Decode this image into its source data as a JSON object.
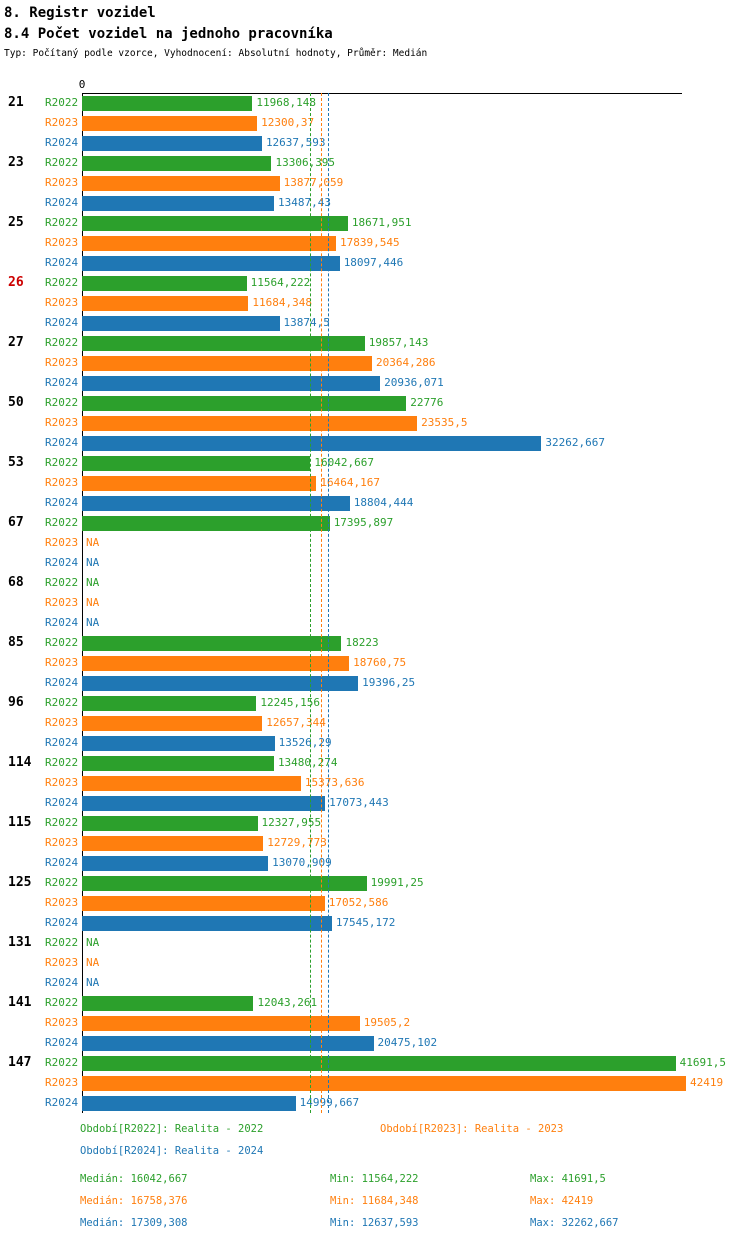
{
  "header": {
    "title": "8. Registr vozidel",
    "subtitle": "8.4 Počet vozidel na jednoho pracovníka",
    "meta": "Typ: Počítaný podle vzorce, Vyhodnocení: Absolutní hodnoty, Průměr: Medián"
  },
  "axis": {
    "zero_label": "0"
  },
  "colors": {
    "r2022": "#2ca02c",
    "r2023": "#ff7f0e",
    "r2024": "#1f77b4",
    "highlight": "#cc0000",
    "axis": "#000000"
  },
  "chart_data": {
    "type": "bar",
    "orientation": "horizontal",
    "title": "8.4 Počet vozidel na jednoho pracovníka",
    "xlabel": "",
    "ylabel": "",
    "xmin": 0,
    "xmax": 42419,
    "na_text": "NA",
    "categories": [
      "21",
      "23",
      "25",
      "26",
      "27",
      "50",
      "53",
      "67",
      "68",
      "85",
      "96",
      "114",
      "115",
      "125",
      "131",
      "141",
      "147"
    ],
    "highlighted_category": "26",
    "series": [
      {
        "name": "R2022",
        "color": "#2ca02c",
        "median": 16042.667,
        "values": [
          11968.148,
          13306.395,
          18671.951,
          11564.222,
          19857.143,
          22776,
          16042.667,
          17395.897,
          null,
          18223,
          12245.156,
          13480.274,
          12327.955,
          19991.25,
          null,
          12043.261,
          41691.5
        ],
        "labels": [
          "11968,148",
          "13306,395",
          "18671,951",
          "11564,222",
          "19857,143",
          "22776",
          "16042,667",
          "17395,897",
          "NA",
          "18223",
          "12245,156",
          "13480,274",
          "12327,955",
          "19991,25",
          "NA",
          "12043,261",
          "41691,5"
        ]
      },
      {
        "name": "R2023",
        "color": "#ff7f0e",
        "median": 16758.376,
        "values": [
          12300.37,
          13877.059,
          17839.545,
          11684.348,
          20364.286,
          23535.5,
          16464.167,
          null,
          null,
          18760.75,
          12657.344,
          15373.636,
          12729.773,
          17052.586,
          null,
          19505.2,
          42419
        ],
        "labels": [
          "12300,37",
          "13877,059",
          "17839,545",
          "11684,348",
          "20364,286",
          "23535,5",
          "16464,167",
          "NA",
          "NA",
          "18760,75",
          "12657,344",
          "15373,636",
          "12729,773",
          "17052,586",
          "NA",
          "19505,2",
          "42419"
        ]
      },
      {
        "name": "R2024",
        "color": "#1f77b4",
        "median": 17309.308,
        "values": [
          12637.593,
          13487.43,
          18097.446,
          13874.5,
          20936.071,
          32262.667,
          18804.444,
          null,
          null,
          19396.25,
          13526.29,
          17073.443,
          13070.909,
          17545.172,
          null,
          20475.102,
          14999.667
        ],
        "labels": [
          "12637,593",
          "13487,43",
          "18097,446",
          "13874,5",
          "20936,071",
          "32262,667",
          "18804,444",
          "NA",
          "NA",
          "19396,25",
          "13526,29",
          "17073,443",
          "13070,909",
          "17545,172",
          "NA",
          "20475,102",
          "14999,667"
        ]
      }
    ]
  },
  "legend": [
    {
      "label": "Období[R2022]: Realita - 2022",
      "color": "#2ca02c"
    },
    {
      "label": "Období[R2023]: Realita - 2023",
      "color": "#ff7f0e"
    },
    {
      "label": "Období[R2024]: Realita - 2024",
      "color": "#1f77b4"
    }
  ],
  "stats": [
    {
      "median": "Medián: 16042,667",
      "min": "Min: 11564,222",
      "max": "Max: 41691,5",
      "color": "#2ca02c"
    },
    {
      "median": "Medián: 16758,376",
      "min": "Min: 11684,348",
      "max": "Max: 42419",
      "color": "#ff7f0e"
    },
    {
      "median": "Medián: 17309,308",
      "min": "Min: 12637,593",
      "max": "Max: 32262,667",
      "color": "#1f77b4"
    }
  ]
}
